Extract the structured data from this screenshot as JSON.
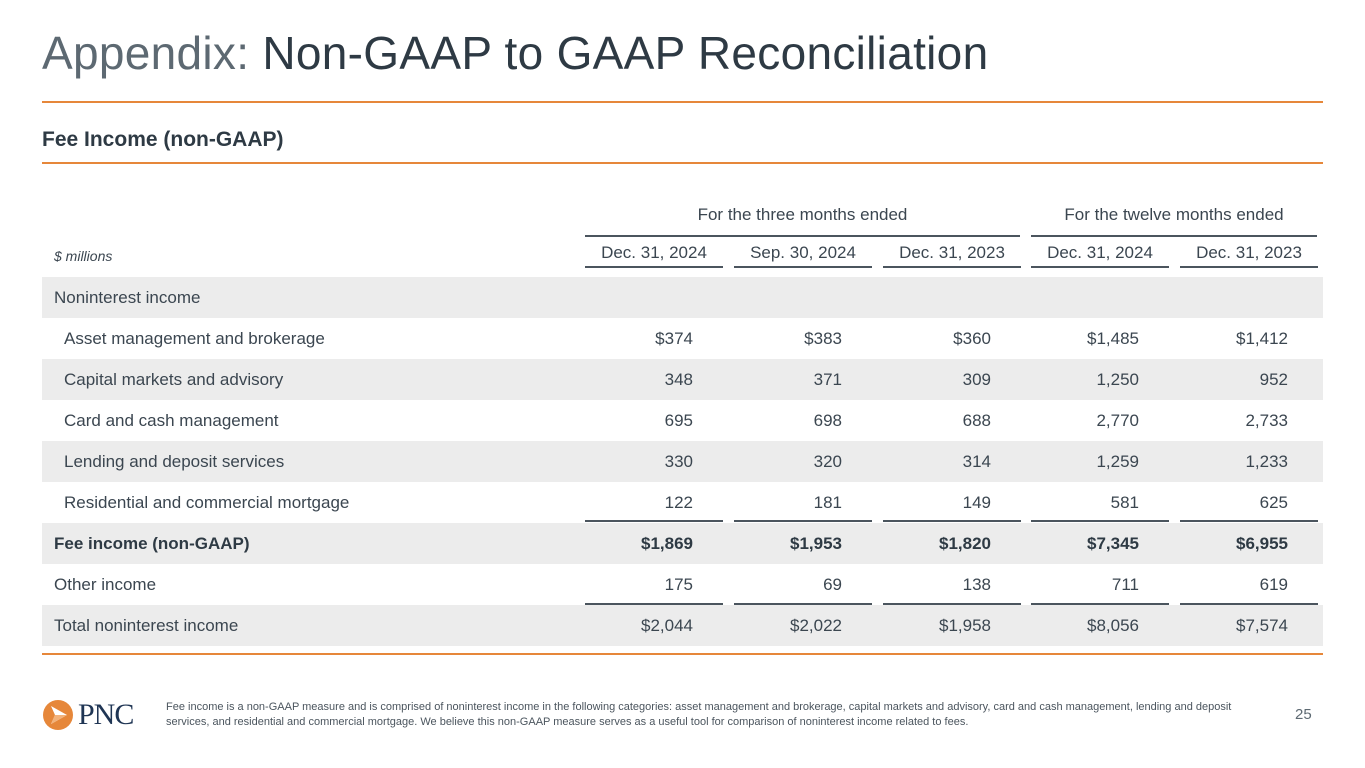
{
  "title": {
    "prefix": "Appendix:",
    "main": " Non-GAAP to GAAP Reconciliation"
  },
  "subtitle": "Fee Income (non-GAAP)",
  "table": {
    "units": "$ millions",
    "groups": [
      "For the three months ended",
      "For the twelve months ended"
    ],
    "columns": [
      "Dec. 31, 2024",
      "Sep. 30, 2024",
      "Dec. 31, 2023",
      "Dec. 31, 2024",
      "Dec. 31, 2023"
    ],
    "rows": [
      {
        "label": "Noninterest income",
        "values": [
          "",
          "",
          "",
          "",
          ""
        ]
      },
      {
        "label": "Asset management and brokerage",
        "values": [
          "$374",
          "$383",
          "$360",
          "$1,485",
          "$1,412"
        ]
      },
      {
        "label": "Capital markets and advisory",
        "values": [
          "348",
          "371",
          "309",
          "1,250",
          "952"
        ]
      },
      {
        "label": "Card and cash management",
        "values": [
          "695",
          "698",
          "688",
          "2,770",
          "2,733"
        ]
      },
      {
        "label": "Lending and deposit services",
        "values": [
          "330",
          "320",
          "314",
          "1,259",
          "1,233"
        ]
      },
      {
        "label": "Residential and commercial mortgage",
        "values": [
          "122",
          "181",
          "149",
          "581",
          "625"
        ]
      },
      {
        "label": "Fee income (non-GAAP)",
        "values": [
          "$1,869",
          "$1,953",
          "$1,820",
          "$7,345",
          "$6,955"
        ]
      },
      {
        "label": "Other income",
        "values": [
          "175",
          "69",
          "138",
          "711",
          "619"
        ]
      },
      {
        "label": "Total noninterest income",
        "values": [
          "$2,044",
          "$2,022",
          "$1,958",
          "$8,056",
          "$7,574"
        ]
      }
    ]
  },
  "footer": {
    "logo_text": "PNC",
    "note": "Fee income is a non-GAAP measure and is comprised of noninterest income in the following categories: asset management and brokerage, capital markets and advisory, card and cash management, lending and deposit services, and residential and commercial mortgage. We believe this non-GAAP measure serves as a useful tool for comparison of noninterest income related to fees.",
    "page_number": "25"
  },
  "colors": {
    "accent": "#e6873a",
    "row_band": "#ececec",
    "text": "#2e3a44"
  }
}
